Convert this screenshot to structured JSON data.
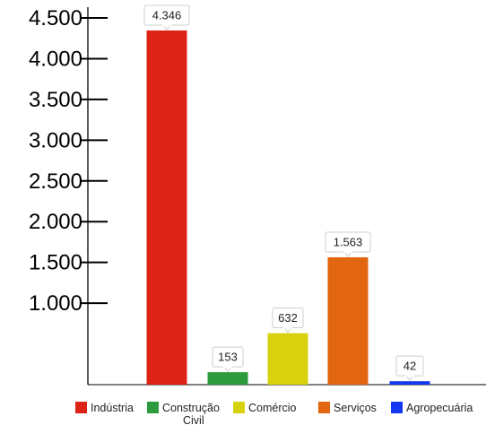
{
  "chart_data": {
    "type": "bar",
    "categories": [
      "Indústria",
      "Construção Civil",
      "Comércio",
      "Serviços",
      "Agropecuária"
    ],
    "values": [
      4346,
      153,
      632,
      1563,
      42
    ],
    "value_labels": [
      "4.346",
      "153",
      "632",
      "1.563",
      "42"
    ],
    "colors": [
      "#dc2316",
      "#2e9a3e",
      "#d7d20d",
      "#e2650f",
      "#1438f0"
    ],
    "yticks": [
      1000,
      1500,
      2000,
      2500,
      3000,
      3500,
      4000,
      4500
    ],
    "ytick_labels": [
      "1.000",
      "1.500",
      "2.000",
      "2.500",
      "3.000",
      "3.500",
      "4.000",
      "4.500"
    ],
    "ylim": [
      0,
      4500
    ],
    "legend": {
      "position": "bottom",
      "entries": [
        {
          "line1": "Indústria",
          "line2": ""
        },
        {
          "line1": "Construção",
          "line2": "Civil"
        },
        {
          "line1": "Comércio",
          "line2": ""
        },
        {
          "line1": "Serviços",
          "line2": ""
        },
        {
          "line1": "Agropecuária",
          "line2": ""
        }
      ]
    },
    "title": "",
    "xlabel": "",
    "ylabel": "",
    "grid": false
  }
}
